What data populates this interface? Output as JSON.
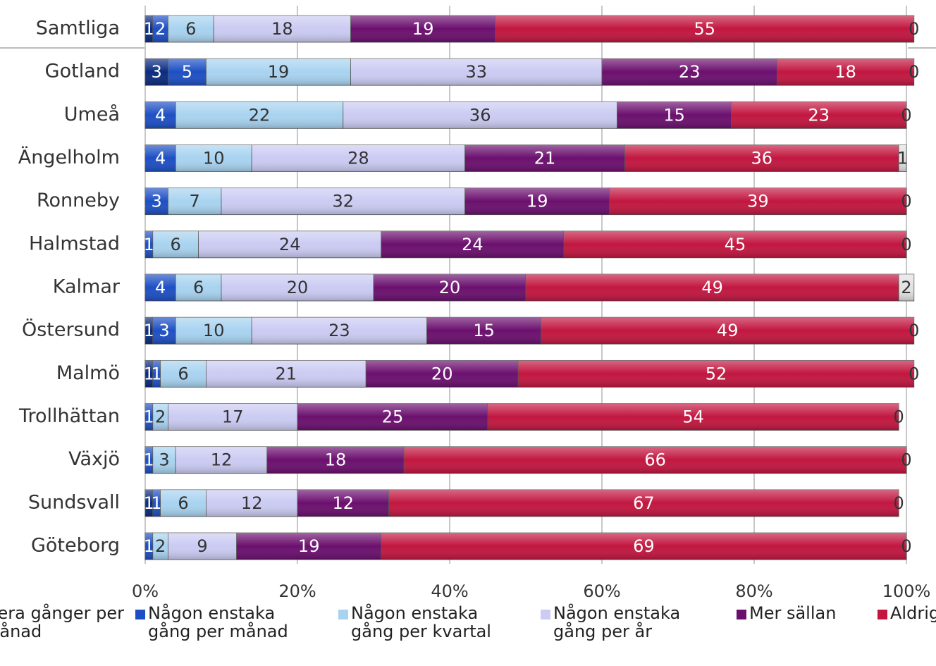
{
  "chart_data": {
    "type": "stacked-bar-horizontal",
    "categories": [
      "Samtliga",
      "Gotland",
      "Umeå",
      "Ängelholm",
      "Ronneby",
      "Halmstad",
      "Kalmar",
      "Östersund",
      "Malmö",
      "Trollhättan",
      "Växjö",
      "Sundsvall",
      "Göteborg"
    ],
    "series": [
      {
        "name": "Flera gånger per månad",
        "color": "#0b2b80",
        "values": [
          1,
          3,
          0,
          0,
          0,
          0,
          0,
          1,
          1,
          0,
          0,
          1,
          0
        ]
      },
      {
        "name": "Någon enstaka gång per månad",
        "color": "#1d4fc4",
        "values": [
          2,
          5,
          4,
          4,
          3,
          1,
          4,
          3,
          1,
          1,
          1,
          1,
          1
        ]
      },
      {
        "name": "Någon enstaka gång per kvartal",
        "color": "#a8d3f0",
        "values": [
          6,
          19,
          22,
          10,
          7,
          6,
          6,
          10,
          6,
          2,
          3,
          6,
          2
        ]
      },
      {
        "name": "Någon enstaka gång per år",
        "color": "#cbcbf3",
        "values": [
          18,
          33,
          36,
          28,
          32,
          24,
          20,
          23,
          21,
          17,
          12,
          12,
          9
        ]
      },
      {
        "name": "Mer sällan",
        "color": "#6b0f6e",
        "values": [
          19,
          23,
          15,
          21,
          19,
          24,
          20,
          15,
          20,
          25,
          18,
          12,
          19
        ]
      },
      {
        "name": "Aldrig",
        "color": "#c2163f",
        "values": [
          55,
          18,
          23,
          36,
          39,
          45,
          49,
          49,
          52,
          54,
          66,
          67,
          69
        ]
      },
      {
        "color": "#e2e2e2",
        "values": [
          0,
          0,
          0,
          1,
          0,
          0,
          2,
          0,
          0,
          0,
          0,
          0,
          0
        ]
      }
    ],
    "xlim": [
      0,
      100
    ],
    "xticks": [
      {
        "value": 0,
        "label": "0%"
      },
      {
        "value": 20,
        "label": "20%"
      },
      {
        "value": 40,
        "label": "40%"
      },
      {
        "value": 60,
        "label": "60%"
      },
      {
        "value": 80,
        "label": "80%"
      },
      {
        "value": 100,
        "label": "100%"
      }
    ],
    "grid": true,
    "legend": "bottom"
  }
}
